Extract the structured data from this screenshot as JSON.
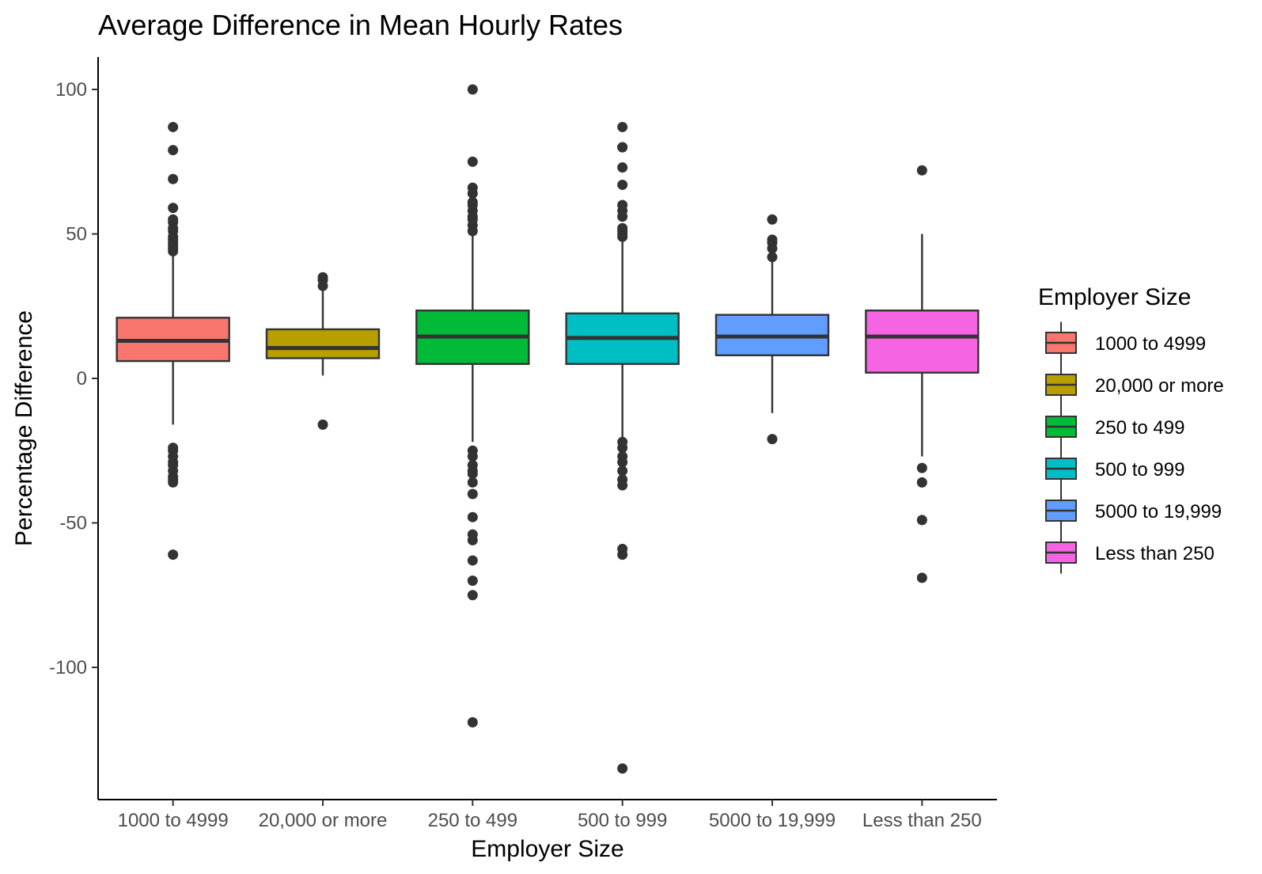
{
  "chart_data": {
    "type": "boxplot",
    "title": "Average Difference in Mean Hourly Rates",
    "xlabel": "Employer Size",
    "ylabel": "Percentage Difference",
    "ylim": [
      -146,
      112
    ],
    "yticks": [
      100,
      50,
      0,
      -50,
      -100
    ],
    "ytick_labels": [
      "100",
      "50",
      "0",
      "-50",
      "-100"
    ],
    "grid": false,
    "legend": {
      "title": "Employer Size",
      "position": "right"
    },
    "categories": [
      "1000 to 4999",
      "20,000 or more",
      "250 to 499",
      "500 to 999",
      "5000 to 19,999",
      "Less than 250"
    ],
    "colors": [
      "#F8766D",
      "#B79F00",
      "#00BA38",
      "#00BFC4",
      "#619CFF",
      "#F564E3"
    ],
    "boxes": [
      {
        "q1": 6,
        "median": 13,
        "q3": 21,
        "whisker_low": -16,
        "whisker_high": 43,
        "outliers": [
          87,
          79,
          69,
          59,
          55,
          54,
          52,
          51,
          49,
          48,
          47,
          46,
          45,
          44,
          -24,
          -25,
          -27,
          -29,
          -30,
          -32,
          -34,
          -35,
          -36,
          -61
        ]
      },
      {
        "q1": 7,
        "median": 10.5,
        "q3": 17,
        "whisker_low": 1,
        "whisker_high": 31,
        "outliers": [
          35,
          34,
          32,
          -16
        ]
      },
      {
        "q1": 5,
        "median": 14.5,
        "q3": 23.5,
        "whisker_low": -22,
        "whisker_high": 51,
        "outliers": [
          100,
          75,
          66,
          64,
          61,
          60,
          58,
          56,
          55,
          53,
          51,
          -25,
          -27,
          -30,
          -32,
          -33,
          -36,
          -40,
          -48,
          -54,
          -56,
          -63,
          -70,
          -75,
          -119
        ]
      },
      {
        "q1": 5,
        "median": 14,
        "q3": 22.5,
        "whisker_low": -21,
        "whisker_high": 48,
        "outliers": [
          87,
          80,
          80,
          73,
          67,
          60,
          58,
          56,
          52,
          51,
          50,
          49,
          -22,
          -24,
          -27,
          -29,
          -32,
          -35,
          -37,
          -59,
          -61,
          -135
        ]
      },
      {
        "q1": 8,
        "median": 14.5,
        "q3": 22,
        "whisker_low": -12,
        "whisker_high": 41,
        "outliers": [
          55,
          48,
          47,
          45,
          42,
          -21
        ]
      },
      {
        "q1": 2,
        "median": 14.5,
        "q3": 23.5,
        "whisker_low": -27,
        "whisker_high": 50,
        "outliers": [
          72,
          -31,
          -36,
          -49,
          -69
        ]
      }
    ]
  }
}
